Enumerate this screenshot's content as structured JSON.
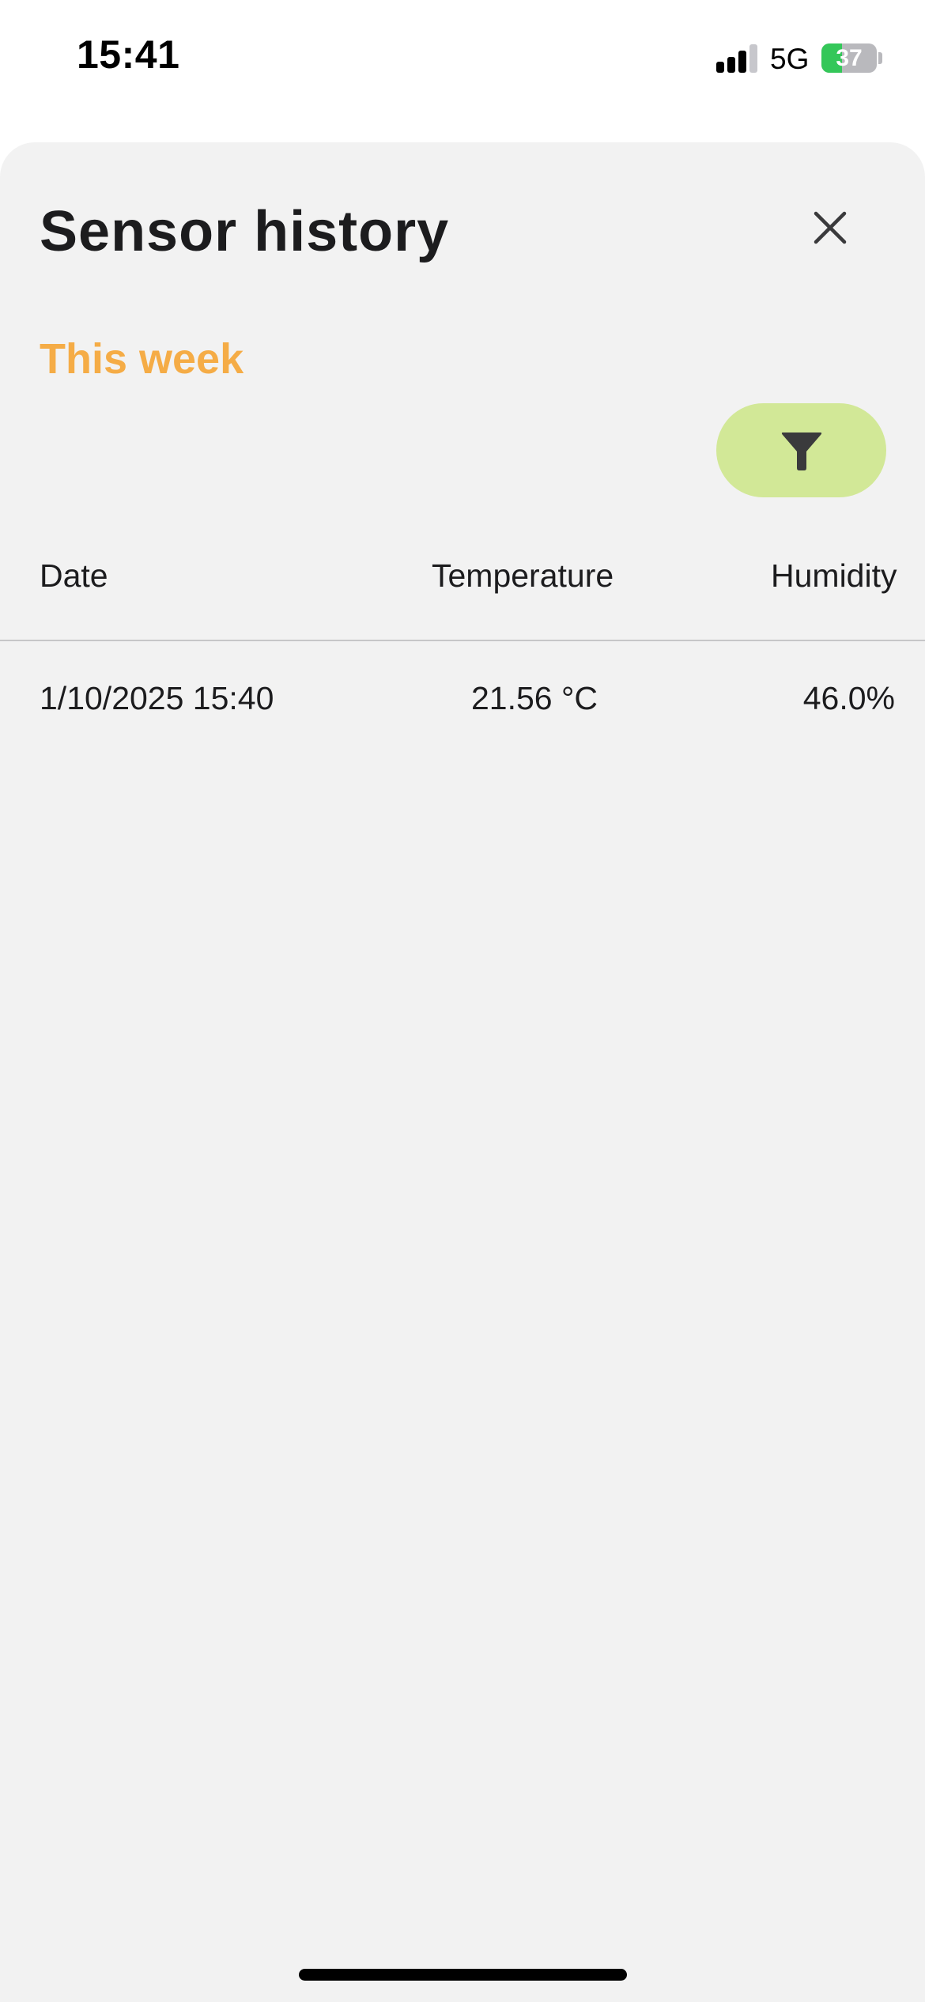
{
  "status_bar": {
    "time": "15:41",
    "network": "5G",
    "battery_percent": "37",
    "battery_level": 0.37,
    "signal_bars": 3
  },
  "sheet": {
    "title": "Sensor history",
    "close_icon": "close-icon",
    "period_label": "This week",
    "period_color": "#f5ac46",
    "filter_button": {
      "icon": "filter-icon",
      "color": "#d2e897"
    }
  },
  "table": {
    "columns": [
      "Date",
      "Temperature",
      "Humidity"
    ],
    "rows": [
      {
        "date": "1/10/2025 15:40",
        "temperature": "21.56 °C",
        "humidity": "46.0%"
      }
    ]
  }
}
